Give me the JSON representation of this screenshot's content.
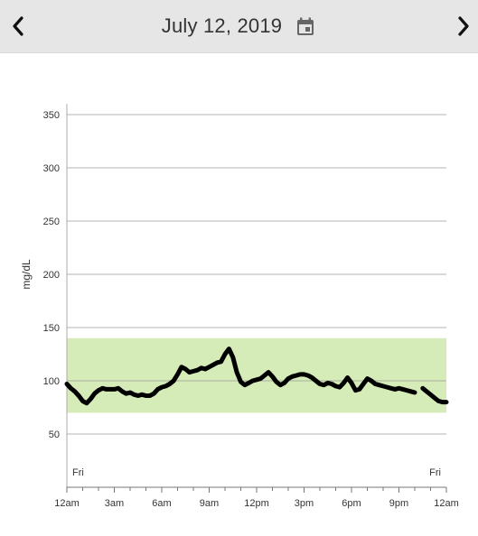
{
  "header": {
    "title": "July 12, 2019",
    "prev_icon": "chevron-left-icon",
    "next_icon": "chevron-right-icon",
    "calendar_icon": "calendar-icon",
    "background": "#e6e6e6"
  },
  "chart_data": {
    "type": "line",
    "ylabel": "mg/dL",
    "ylim": [
      30,
      360
    ],
    "yticks": [
      50,
      100,
      150,
      200,
      250,
      300,
      350
    ],
    "xlim": [
      0,
      24
    ],
    "xticks": [
      {
        "t": 0,
        "label": "12am"
      },
      {
        "t": 3,
        "label": "3am"
      },
      {
        "t": 6,
        "label": "6am"
      },
      {
        "t": 9,
        "label": "9am"
      },
      {
        "t": 12,
        "label": "12pm"
      },
      {
        "t": 15,
        "label": "3pm"
      },
      {
        "t": 18,
        "label": "6pm"
      },
      {
        "t": 21,
        "label": "9pm"
      },
      {
        "t": 24,
        "label": "12am"
      }
    ],
    "day_labels": [
      {
        "t": 0,
        "label": "Fri"
      },
      {
        "t": 24,
        "label": "Fri"
      }
    ],
    "target_range": {
      "low": 70,
      "high": 140,
      "color": "#d6ecb8"
    },
    "grid": true,
    "line_color": "#000000",
    "series": [
      {
        "values": [
          [
            0.0,
            97
          ],
          [
            0.25,
            93
          ],
          [
            0.5,
            90
          ],
          [
            0.75,
            86
          ],
          [
            1.0,
            81
          ],
          [
            1.25,
            79
          ],
          [
            1.5,
            83
          ],
          [
            1.75,
            88
          ],
          [
            2.0,
            91
          ],
          [
            2.25,
            93
          ],
          [
            2.5,
            92
          ],
          [
            3.0,
            92
          ],
          [
            3.25,
            93
          ],
          [
            3.5,
            90
          ],
          [
            3.75,
            88
          ],
          [
            4.0,
            89
          ],
          [
            4.25,
            87
          ],
          [
            4.5,
            86
          ],
          [
            4.75,
            87
          ],
          [
            5.0,
            86
          ],
          [
            5.25,
            86
          ],
          [
            5.5,
            88
          ],
          [
            5.75,
            92
          ],
          [
            6.0,
            94
          ],
          [
            6.25,
            95
          ],
          [
            6.5,
            97
          ],
          [
            6.75,
            100
          ],
          [
            7.0,
            106
          ],
          [
            7.25,
            113
          ],
          [
            7.5,
            111
          ],
          [
            7.75,
            108
          ],
          [
            8.0,
            109
          ],
          [
            8.25,
            110
          ],
          [
            8.5,
            112
          ],
          [
            8.75,
            111
          ],
          [
            9.0,
            113
          ],
          [
            9.25,
            115
          ],
          [
            9.5,
            117
          ],
          [
            9.75,
            118
          ],
          [
            10.0,
            125
          ],
          [
            10.25,
            130
          ],
          [
            10.5,
            122
          ],
          [
            10.75,
            108
          ],
          [
            11.0,
            99
          ],
          [
            11.25,
            96
          ],
          [
            11.5,
            98
          ],
          [
            11.75,
            100
          ],
          [
            12.0,
            101
          ],
          [
            12.25,
            102
          ],
          [
            12.5,
            105
          ],
          [
            12.75,
            108
          ],
          [
            13.0,
            104
          ],
          [
            13.25,
            99
          ],
          [
            13.5,
            96
          ],
          [
            13.75,
            98
          ],
          [
            14.0,
            102
          ],
          [
            14.25,
            104
          ],
          [
            14.5,
            105
          ],
          [
            14.75,
            106
          ],
          [
            15.0,
            106
          ],
          [
            15.25,
            105
          ],
          [
            15.5,
            103
          ],
          [
            15.75,
            100
          ],
          [
            16.0,
            97
          ],
          [
            16.25,
            96
          ],
          [
            16.5,
            98
          ],
          [
            16.75,
            97
          ],
          [
            17.0,
            95
          ],
          [
            17.25,
            94
          ],
          [
            17.5,
            98
          ],
          [
            17.75,
            103
          ],
          [
            18.0,
            98
          ],
          [
            18.25,
            91
          ],
          [
            18.5,
            92
          ],
          [
            18.75,
            97
          ],
          [
            19.0,
            102
          ],
          [
            19.25,
            100
          ],
          [
            19.5,
            97
          ],
          [
            19.75,
            96
          ],
          [
            20.0,
            95
          ],
          [
            20.25,
            94
          ],
          [
            20.5,
            93
          ],
          [
            20.75,
            92
          ],
          [
            21.0,
            93
          ],
          [
            21.25,
            92
          ],
          [
            21.5,
            91
          ],
          [
            21.75,
            90
          ],
          [
            22.0,
            89
          ]
        ]
      },
      {
        "values": [
          [
            22.5,
            93
          ],
          [
            22.75,
            90
          ],
          [
            23.0,
            87
          ],
          [
            23.25,
            84
          ],
          [
            23.5,
            81
          ],
          [
            23.75,
            80
          ],
          [
            24.0,
            80
          ]
        ]
      }
    ]
  }
}
